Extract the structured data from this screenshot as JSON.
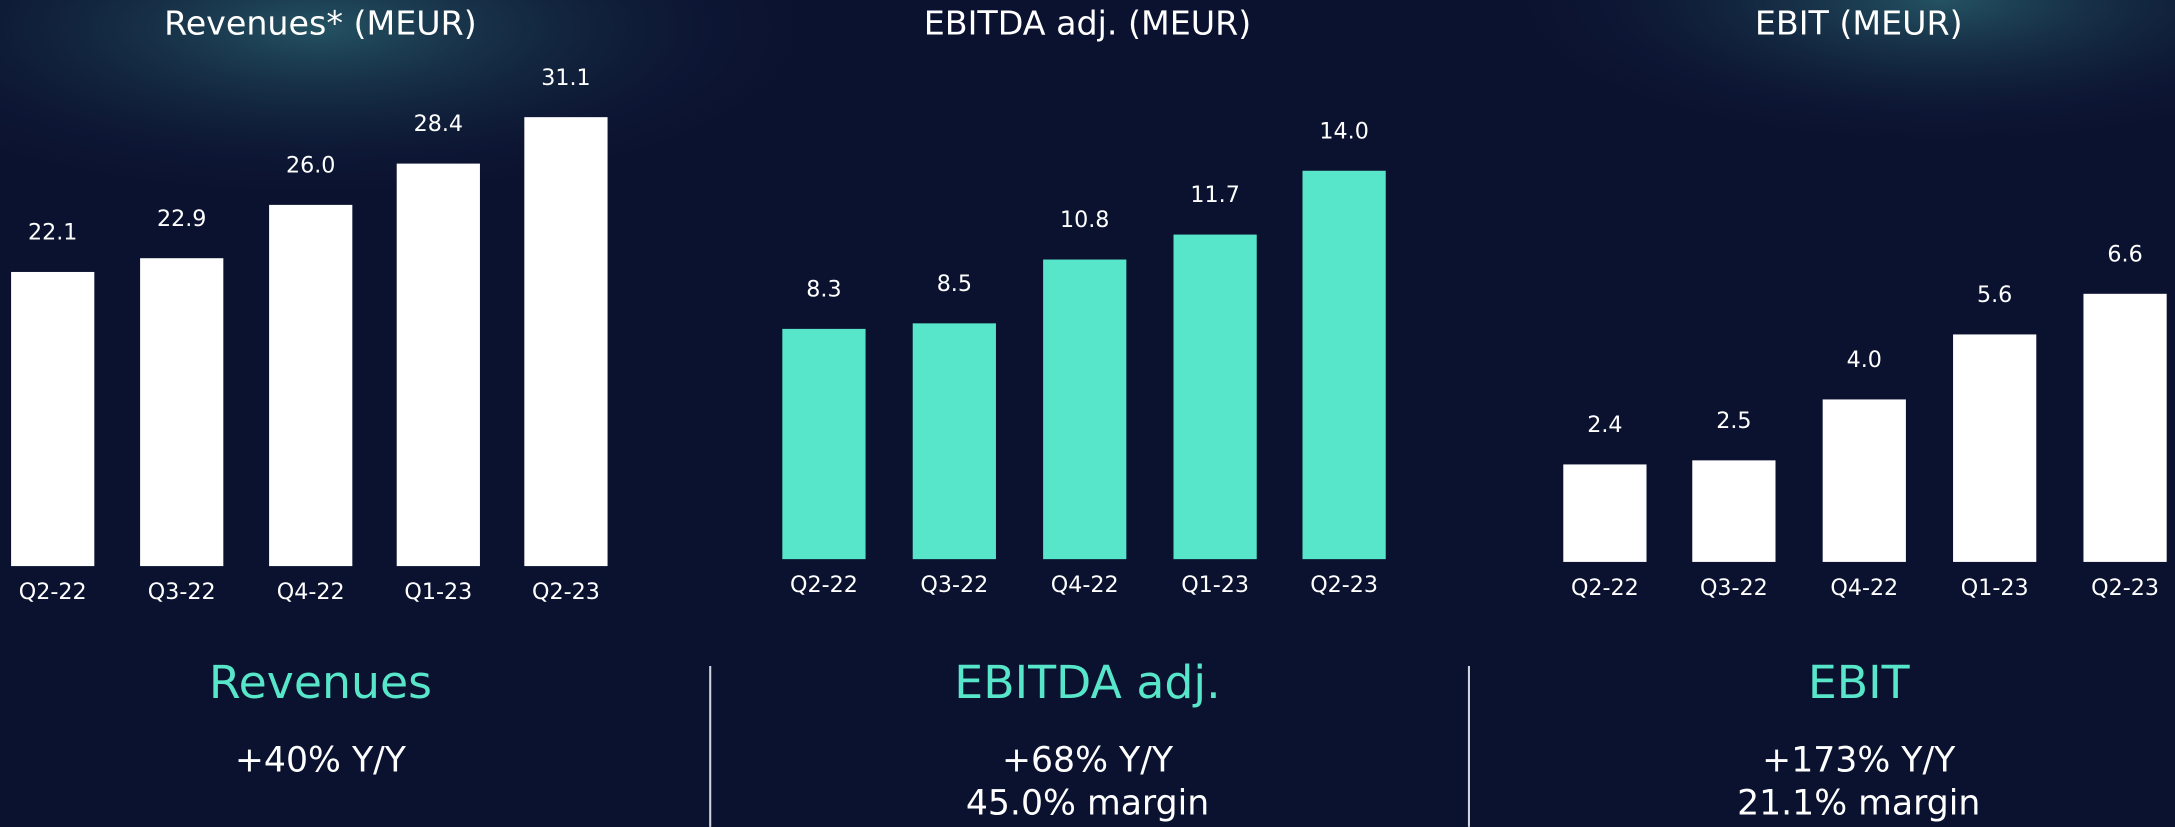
{
  "chart_data": [
    {
      "type": "bar",
      "title": "Revenues* (MEUR)",
      "categories": [
        "Q2-22",
        "Q3-22",
        "Q4-22",
        "Q1-23",
        "Q2-23"
      ],
      "values": [
        22.1,
        22.9,
        26.0,
        28.4,
        31.1
      ],
      "value_labels": [
        "22.1",
        "22.9",
        "26.0",
        "28.4",
        "31.1"
      ],
      "color": "#ffffff",
      "ylim": [
        5,
        35
      ]
    },
    {
      "type": "bar",
      "title": "EBITDA adj. (MEUR)",
      "categories": [
        "Q2-22",
        "Q3-22",
        "Q4-22",
        "Q1-23",
        "Q2-23"
      ],
      "values": [
        8.3,
        8.5,
        10.8,
        11.7,
        14.0
      ],
      "value_labels": [
        "8.3",
        "8.5",
        "10.8",
        "11.7",
        "14.0"
      ],
      "color": "#57e6c9",
      "ylim": [
        0,
        15
      ]
    },
    {
      "type": "bar",
      "title": "EBIT (MEUR)",
      "categories": [
        "Q2-22",
        "Q3-22",
        "Q4-22",
        "Q1-23",
        "Q2-23"
      ],
      "values": [
        2.4,
        2.5,
        4.0,
        5.6,
        6.6
      ],
      "value_labels": [
        "2.4",
        "2.5",
        "4.0",
        "5.6",
        "6.6"
      ],
      "color": "#ffffff",
      "ylim": [
        0,
        7
      ]
    }
  ],
  "summary": [
    {
      "heading": "Revenues",
      "lines": [
        "+40% Y/Y"
      ]
    },
    {
      "heading": "EBITDA adj.",
      "lines": [
        "+68% Y/Y",
        "45.0% margin"
      ]
    },
    {
      "heading": "EBIT",
      "lines": [
        "+173% Y/Y",
        "21.1% margin"
      ]
    }
  ]
}
